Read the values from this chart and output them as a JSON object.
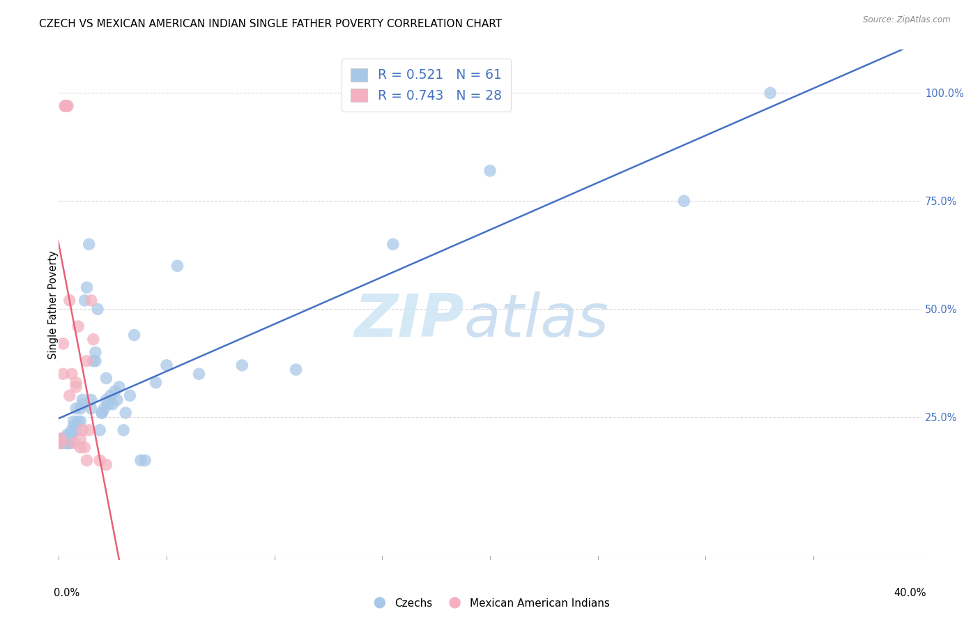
{
  "title": "CZECH VS MEXICAN AMERICAN INDIAN SINGLE FATHER POVERTY CORRELATION CHART",
  "source": "Source: ZipAtlas.com",
  "ylabel": "Single Father Poverty",
  "yticks_labels": [
    "25.0%",
    "50.0%",
    "75.0%",
    "100.0%"
  ],
  "yticks_vals": [
    0.25,
    0.5,
    0.75,
    1.0
  ],
  "xlim": [
    0.0,
    0.4
  ],
  "ylim": [
    -0.08,
    1.1
  ],
  "legend_r1": "R = 0.521",
  "legend_n1": "N = 61",
  "legend_r2": "R = 0.743",
  "legend_n2": "N = 28",
  "blue_scatter_color": "#a8c8e8",
  "pink_scatter_color": "#f4b0c0",
  "blue_line_color": "#4472c4",
  "pink_line_color": "#e8607a",
  "watermark_color": "#cde4f5",
  "czechs_x": [
    0.001,
    0.001,
    0.002,
    0.002,
    0.003,
    0.003,
    0.004,
    0.004,
    0.004,
    0.005,
    0.005,
    0.005,
    0.005,
    0.006,
    0.006,
    0.007,
    0.007,
    0.008,
    0.008,
    0.009,
    0.01,
    0.01,
    0.011,
    0.011,
    0.012,
    0.013,
    0.014,
    0.015,
    0.015,
    0.016,
    0.017,
    0.017,
    0.018,
    0.019,
    0.02,
    0.02,
    0.021,
    0.022,
    0.022,
    0.023,
    0.024,
    0.025,
    0.026,
    0.027,
    0.028,
    0.03,
    0.031,
    0.033,
    0.035,
    0.038,
    0.04,
    0.045,
    0.05,
    0.055,
    0.065,
    0.085,
    0.11,
    0.155,
    0.2,
    0.29,
    0.33
  ],
  "czechs_y": [
    0.2,
    0.19,
    0.2,
    0.19,
    0.2,
    0.19,
    0.19,
    0.2,
    0.21,
    0.19,
    0.21,
    0.2,
    0.19,
    0.22,
    0.21,
    0.23,
    0.24,
    0.22,
    0.27,
    0.24,
    0.27,
    0.24,
    0.29,
    0.28,
    0.52,
    0.55,
    0.65,
    0.27,
    0.29,
    0.38,
    0.38,
    0.4,
    0.5,
    0.22,
    0.26,
    0.26,
    0.27,
    0.29,
    0.34,
    0.28,
    0.3,
    0.28,
    0.31,
    0.29,
    0.32,
    0.22,
    0.26,
    0.3,
    0.44,
    0.15,
    0.15,
    0.33,
    0.37,
    0.6,
    0.35,
    0.37,
    0.36,
    0.65,
    0.82,
    0.75,
    1.0
  ],
  "mexican_x": [
    0.001,
    0.001,
    0.002,
    0.002,
    0.003,
    0.003,
    0.003,
    0.003,
    0.004,
    0.004,
    0.005,
    0.005,
    0.006,
    0.007,
    0.008,
    0.008,
    0.009,
    0.01,
    0.01,
    0.011,
    0.012,
    0.013,
    0.013,
    0.014,
    0.015,
    0.016,
    0.019,
    0.022
  ],
  "mexican_y": [
    0.2,
    0.19,
    0.42,
    0.35,
    0.97,
    0.97,
    0.97,
    0.97,
    0.97,
    0.97,
    0.52,
    0.3,
    0.35,
    0.19,
    0.33,
    0.32,
    0.46,
    0.2,
    0.18,
    0.22,
    0.18,
    0.38,
    0.15,
    0.22,
    0.52,
    0.43,
    0.15,
    0.14
  ]
}
